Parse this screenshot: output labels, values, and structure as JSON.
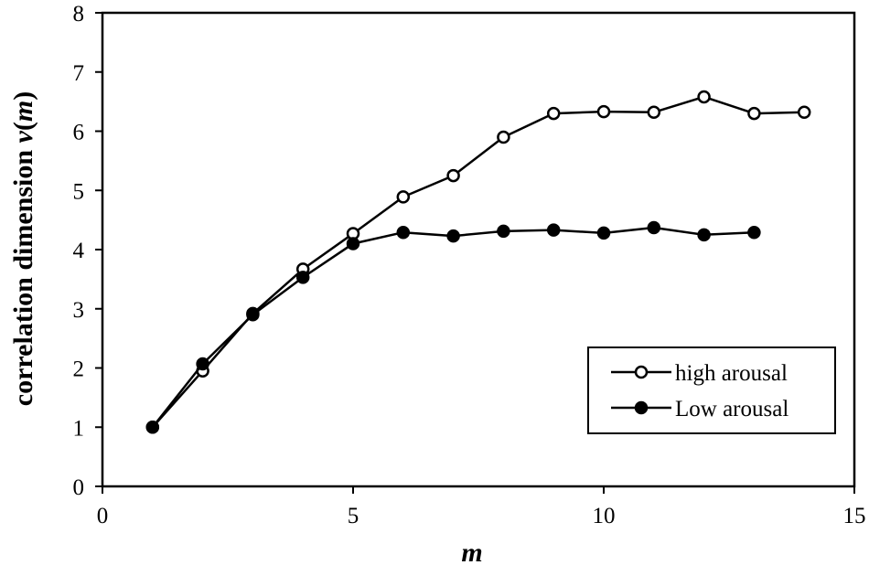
{
  "chart_data": {
    "type": "line",
    "title": "",
    "xlabel": "m",
    "ylabel_prefix": "correlation dimension ",
    "ylabel_func": "v",
    "ylabel_open": "(",
    "ylabel_var": "m",
    "ylabel_close": ")",
    "xlim": [
      0,
      15
    ],
    "ylim": [
      0,
      8
    ],
    "xticks": [
      0,
      5,
      10,
      15
    ],
    "yticks": [
      0,
      1,
      2,
      3,
      4,
      5,
      6,
      7,
      8
    ],
    "grid": false,
    "legend_position": "bottom-right",
    "series": [
      {
        "name": "high arousal",
        "marker": "open-circle",
        "color": "#000000",
        "x": [
          1,
          2,
          3,
          4,
          5,
          6,
          7,
          8,
          9,
          10,
          11,
          12,
          13,
          14
        ],
        "y": [
          1.0,
          1.95,
          2.92,
          3.67,
          4.27,
          4.89,
          5.25,
          5.9,
          6.3,
          6.33,
          6.32,
          6.58,
          6.3,
          6.32
        ]
      },
      {
        "name": "Low arousal",
        "marker": "filled-circle",
        "color": "#000000",
        "x": [
          1,
          2,
          3,
          4,
          5,
          6,
          7,
          8,
          9,
          10,
          11,
          12,
          13
        ],
        "y": [
          1.0,
          2.07,
          2.9,
          3.53,
          4.1,
          4.29,
          4.23,
          4.31,
          4.33,
          4.28,
          4.37,
          4.25,
          4.29
        ]
      }
    ]
  }
}
